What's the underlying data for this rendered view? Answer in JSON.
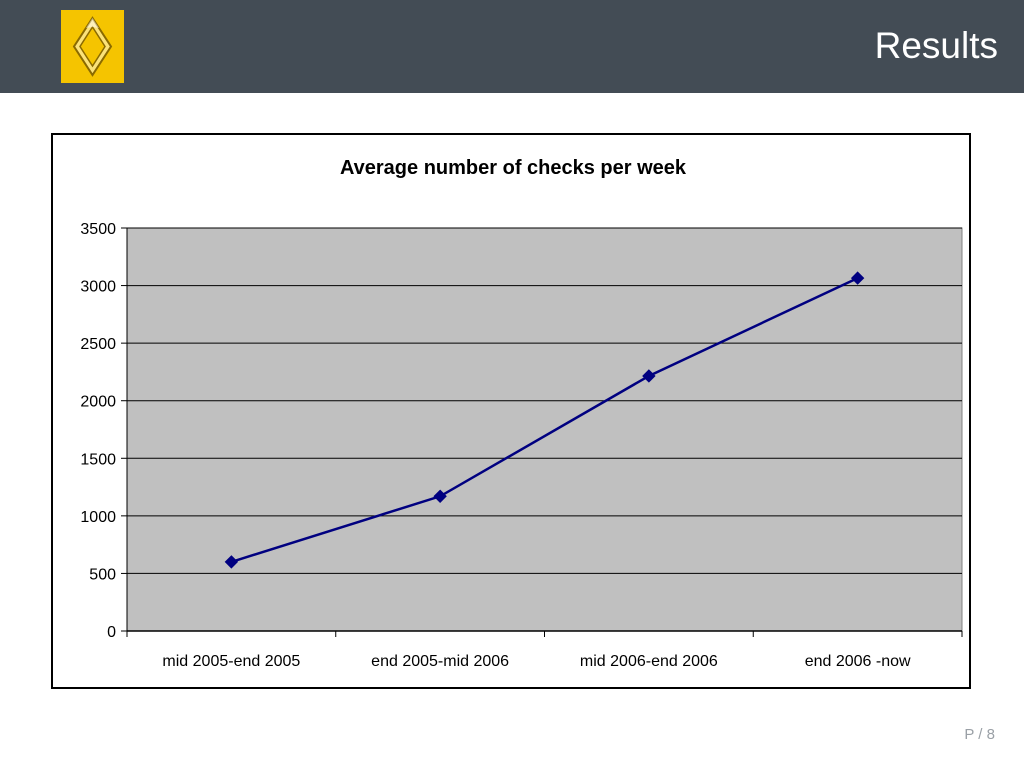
{
  "slide": {
    "title": "Results",
    "page": "P / 8",
    "colors": {
      "header": "#434c55",
      "logo_bg": "#f5c400",
      "plot_bg": "#c0c0c0",
      "series": "#000080"
    },
    "logo_icon": "renault-diamond-logo"
  },
  "chart_data": {
    "type": "line",
    "title": "Average number of checks per week",
    "xlabel": "",
    "ylabel": "",
    "categories": [
      "mid 2005-end 2005",
      "end 2005-mid 2006",
      "mid 2006-end 2006",
      "end 2006 -now"
    ],
    "series": [
      {
        "values": [
          600,
          1170,
          2215,
          3065
        ],
        "color": "#000080",
        "marker": "diamond"
      }
    ],
    "ylim": [
      0,
      3500
    ],
    "yticks": [
      0,
      500,
      1000,
      1500,
      2000,
      2500,
      3000,
      3500
    ],
    "grid": true,
    "legend": "none"
  }
}
